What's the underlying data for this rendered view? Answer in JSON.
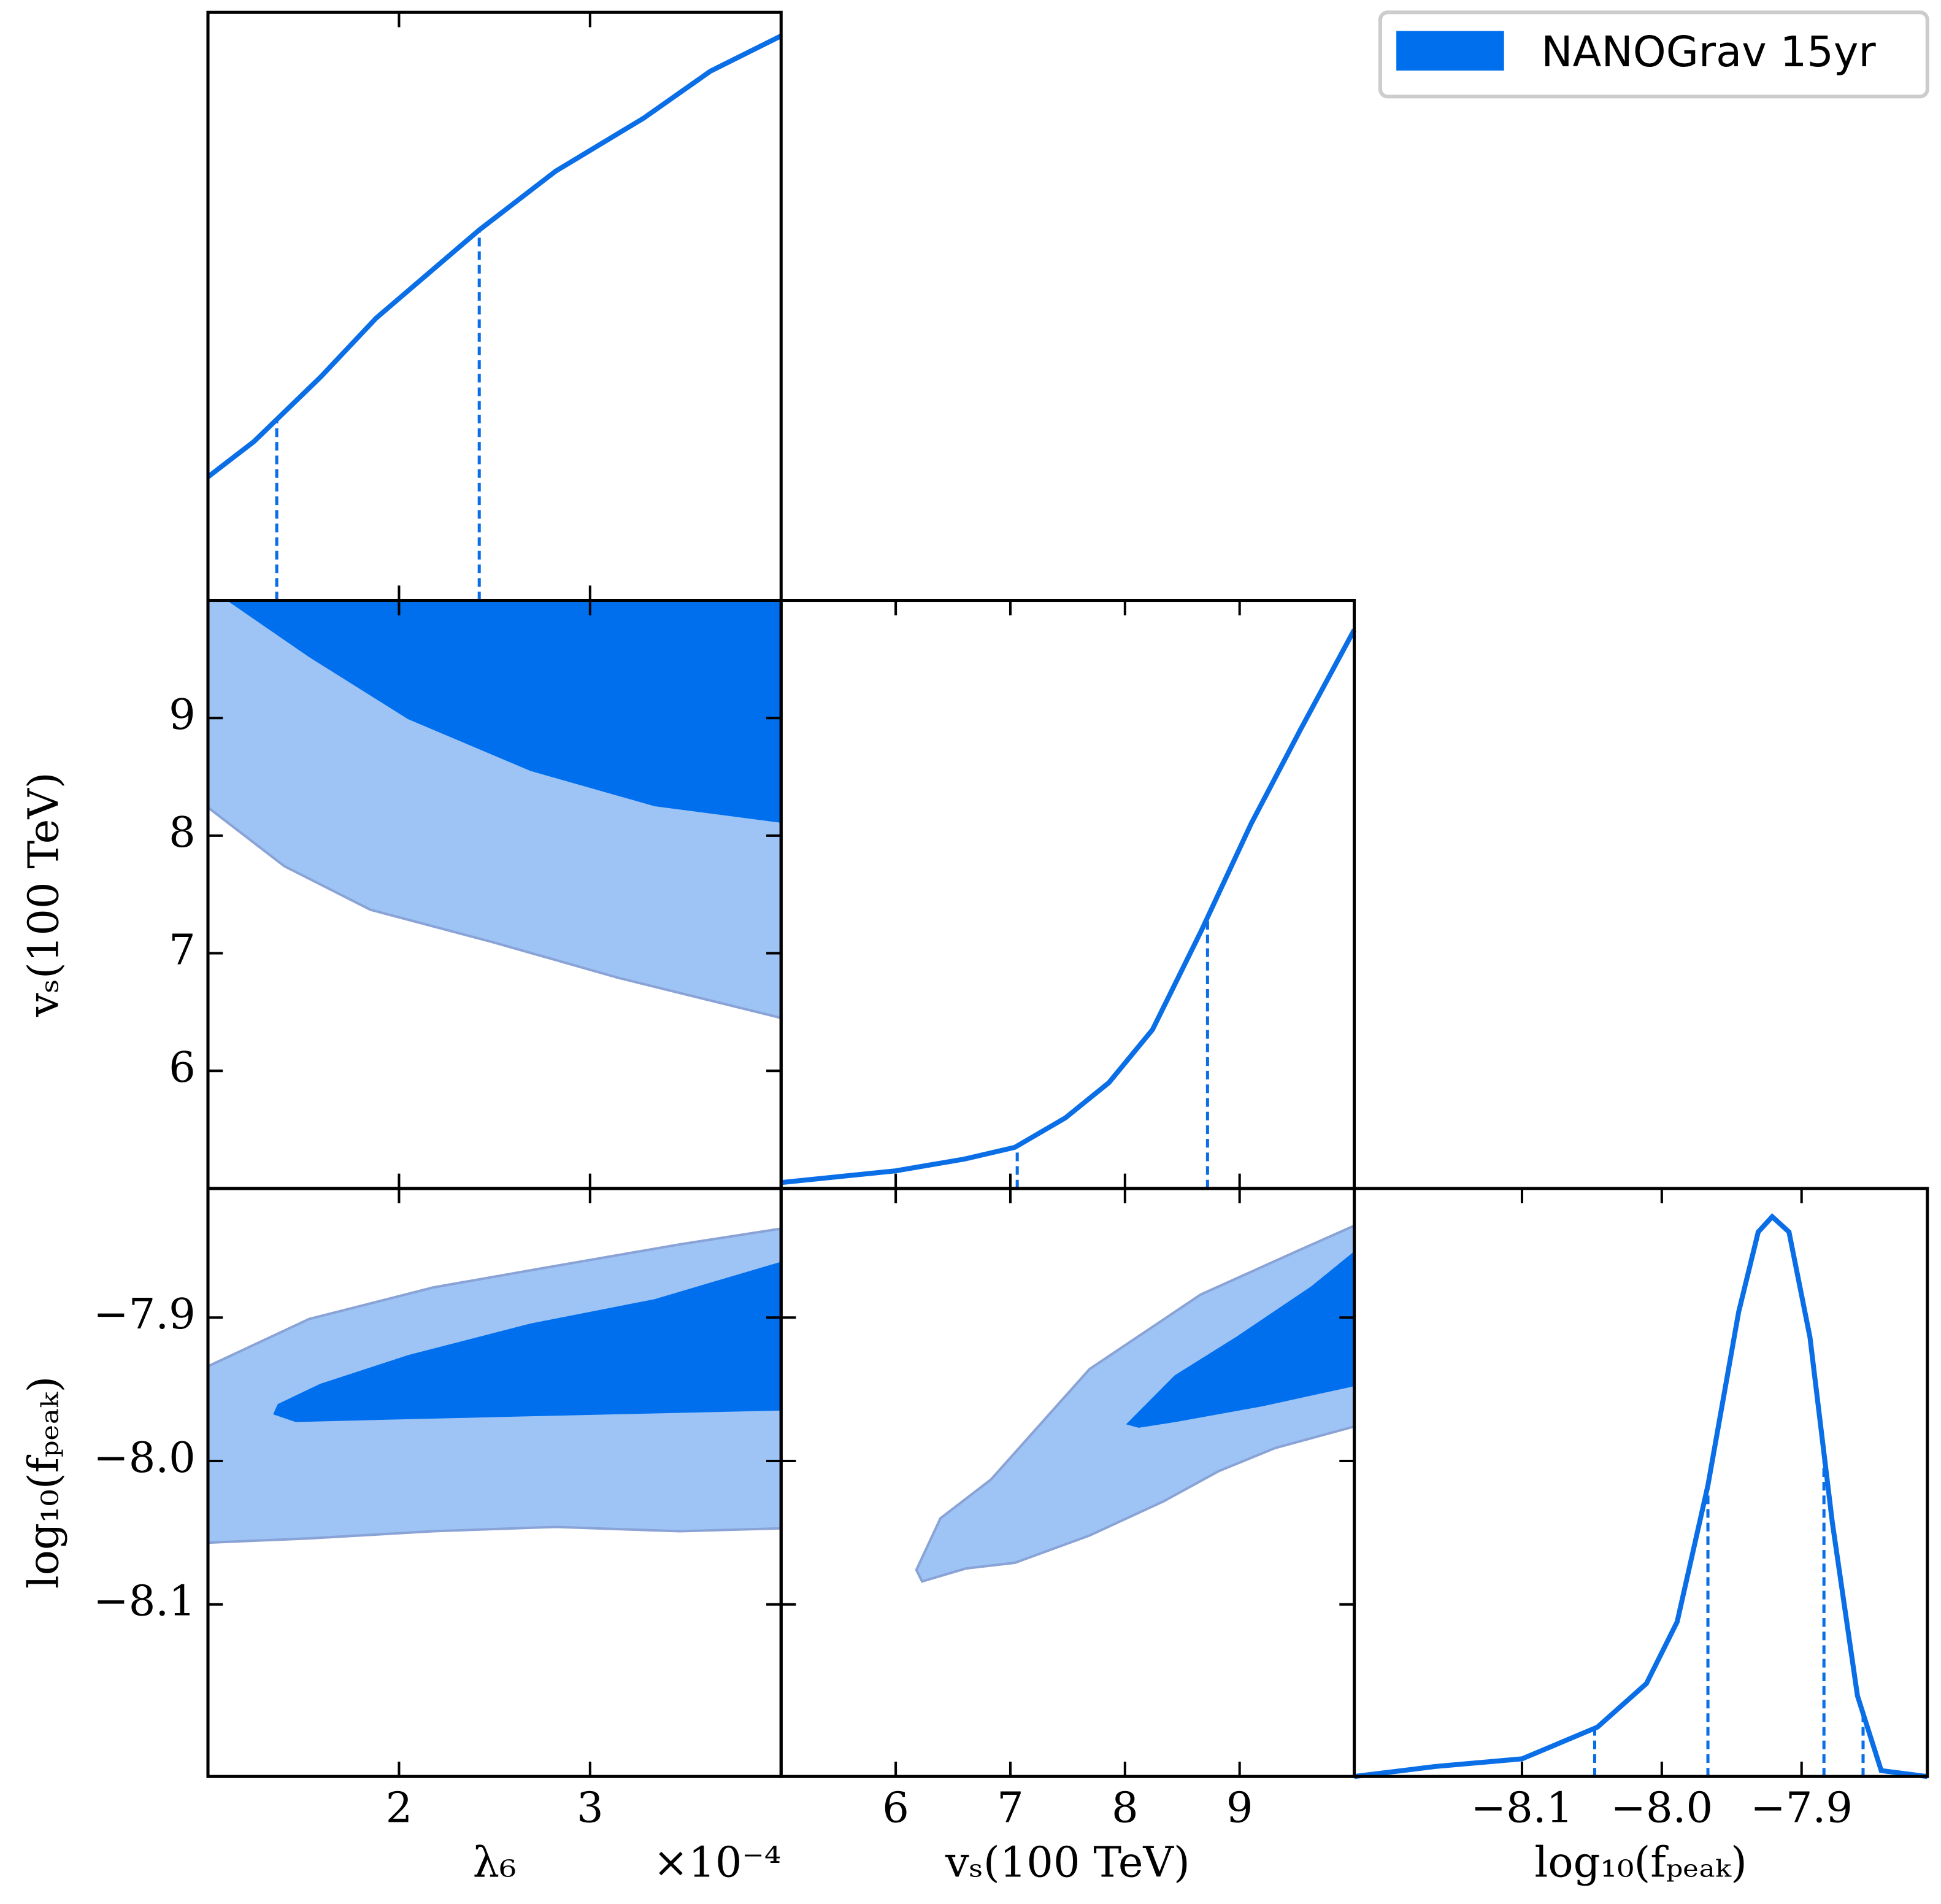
{
  "legend": {
    "label": "NANOGrav 15yr",
    "color": "#006fee",
    "corner": "upper right"
  },
  "chart_data": [
    {
      "type": "line",
      "color": "#0a6ee6",
      "xlim": [
        1,
        4
      ],
      "xticks": [
        2,
        3
      ],
      "ylim": [
        0,
        1
      ],
      "x": [
        1.0,
        1.24,
        1.59,
        1.88,
        2.42,
        2.82,
        3.28,
        3.63,
        4.0
      ],
      "values": [
        0.21,
        0.27,
        0.38,
        0.48,
        0.63,
        0.73,
        0.82,
        0.9,
        0.96
      ],
      "quantiles": [
        1.36,
        2.42
      ]
    },
    {
      "type": "contour",
      "xlim": [
        1,
        4
      ],
      "xticks": [
        2,
        3
      ],
      "ylim": [
        5,
        10
      ],
      "yticks": [
        6,
        7,
        8,
        9
      ],
      "ylabel": "vₛ(100 TeV)",
      "regions": [
        {
          "color": "#9dc4f5",
          "edge_color": "#8aa3d6",
          "x": [
            1.0,
            4.0,
            4.0,
            3.15,
            2.5,
            1.85,
            1.4,
            1.0
          ],
          "y": [
            10.0,
            10.0,
            6.45,
            6.79,
            7.09,
            7.37,
            7.74,
            8.24
          ]
        },
        {
          "color": "#006fee",
          "edge_color": "#006fee",
          "x": [
            1.11,
            1.53,
            2.05,
            2.69,
            3.34,
            4.0,
            4.0
          ],
          "y": [
            10.0,
            9.53,
            9.0,
            8.56,
            8.26,
            8.12,
            10.0
          ]
        }
      ]
    },
    {
      "type": "line",
      "color": "#0a6ee6",
      "xlim": [
        5,
        10
      ],
      "xticks": [
        6,
        7,
        8,
        9
      ],
      "ylim": [
        0,
        1
      ],
      "x": [
        5.0,
        6.0,
        6.6,
        7.04,
        7.48,
        7.86,
        8.24,
        8.67,
        9.1,
        9.53,
        10.0
      ],
      "values": [
        0.01,
        0.03,
        0.05,
        0.07,
        0.12,
        0.18,
        0.27,
        0.44,
        0.62,
        0.78,
        0.95
      ],
      "quantiles": [
        7.06,
        8.72
      ]
    },
    {
      "type": "contour",
      "xlim": [
        1,
        4
      ],
      "xticks": [
        2,
        3
      ],
      "xlabel": "λ₆",
      "offset_text": "×10⁻⁴",
      "ylim": [
        -8.22,
        -7.81
      ],
      "yticks": [
        {
          "value": -7.9,
          "label": "−7.9"
        },
        {
          "value": -8.0,
          "label": "−8.0"
        },
        {
          "value": -8.1,
          "label": "−8.1"
        }
      ],
      "ylabel": "log₁₀(fₚₑₐₖ)",
      "regions": [
        {
          "color": "#9dc4f5",
          "edge_color": "#8aa3d6",
          "x": [
            1.0,
            1.53,
            2.18,
            2.82,
            3.47,
            4.0,
            4.0,
            3.47,
            2.82,
            2.18,
            1.53,
            1.0
          ],
          "y": [
            -7.934,
            -7.901,
            -7.879,
            -7.864,
            -7.849,
            -7.838,
            -8.047,
            -8.049,
            -8.046,
            -8.049,
            -8.054,
            -8.057
          ]
        },
        {
          "color": "#006fee",
          "edge_color": "#006fee",
          "x": [
            1.37,
            1.59,
            2.05,
            2.69,
            3.34,
            4.0,
            4.0,
            3.34,
            2.69,
            2.05,
            1.46,
            1.35
          ],
          "y": [
            -7.961,
            -7.947,
            -7.927,
            -7.905,
            -7.888,
            -7.862,
            -7.964,
            -7.966,
            -7.968,
            -7.97,
            -7.972,
            -7.967
          ]
        }
      ]
    },
    {
      "type": "contour",
      "xlim": [
        5,
        10
      ],
      "xticks": [
        6,
        7,
        8,
        9
      ],
      "xlabel": "vₛ(100 TeV)",
      "ylim": [
        -8.22,
        -7.81
      ],
      "yticks": [
        {
          "value": -7.9,
          "label": "−7.9"
        },
        {
          "value": -8.0,
          "label": "−8.0"
        },
        {
          "value": -8.1,
          "label": "−8.1"
        }
      ],
      "regions": [
        {
          "color": "#9dc4f5",
          "edge_color": "#8aa3d6",
          "x": [
            6.18,
            6.39,
            6.83,
            7.69,
            8.66,
            9.52,
            10.0,
            10.0,
            9.31,
            8.82,
            8.34,
            7.69,
            7.04,
            6.61,
            6.23
          ],
          "y": [
            -8.076,
            -8.04,
            -8.013,
            -7.936,
            -7.884,
            -7.853,
            -7.836,
            -7.976,
            -7.991,
            -8.007,
            -8.028,
            -8.052,
            -8.071,
            -8.075,
            -8.084
          ]
        },
        {
          "color": "#006fee",
          "edge_color": "#006fee",
          "x": [
            8.03,
            8.44,
            8.98,
            9.63,
            10.0,
            10.0,
            9.2,
            8.44,
            8.12
          ],
          "y": [
            -7.974,
            -7.941,
            -7.914,
            -7.879,
            -7.855,
            -7.947,
            -7.961,
            -7.972,
            -7.976
          ]
        }
      ]
    },
    {
      "type": "line",
      "color": "#0a6ee6",
      "xlim": [
        -8.22,
        -7.81
      ],
      "xticks": [
        {
          "value": -8.1,
          "label": "−8.1"
        },
        {
          "value": -8.0,
          "label": "−8.0"
        },
        {
          "value": -7.9,
          "label": "−7.9"
        }
      ],
      "xlabel": "log₁₀(fₚₑₐₖ)",
      "ylim": [
        0,
        1
      ],
      "x": [
        -8.22,
        -8.162,
        -8.1,
        -8.046,
        -8.011,
        -7.989,
        -7.967,
        -7.945,
        -7.931,
        -7.921,
        -7.909,
        -7.894,
        -7.878,
        -7.86,
        -7.843,
        -7.81
      ],
      "values": [
        0.0,
        0.017,
        0.03,
        0.084,
        0.158,
        0.263,
        0.495,
        0.79,
        0.926,
        0.952,
        0.926,
        0.747,
        0.432,
        0.137,
        0.01,
        0.0
      ],
      "quantiles": [
        -8.048,
        -7.967,
        -7.884,
        -7.856
      ]
    }
  ]
}
